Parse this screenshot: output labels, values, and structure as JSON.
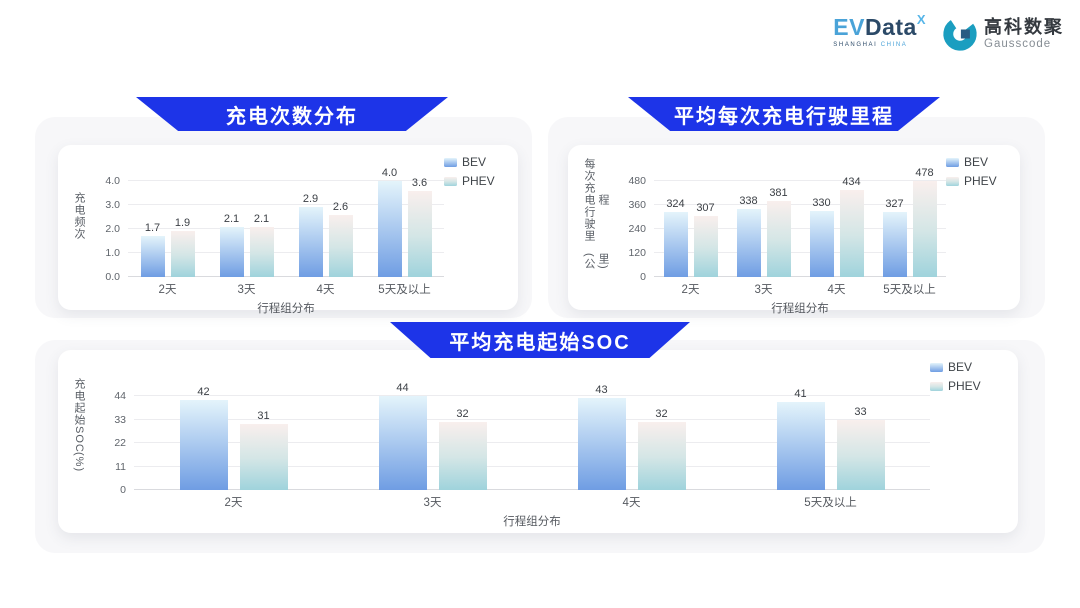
{
  "header": {
    "evdata": {
      "ev": "EV",
      "data": "Data",
      "sup": "X",
      "sub_left": "SHANGHAI",
      "sub_right": "CHINA"
    },
    "gausscode": {
      "name_cn": "高科数聚",
      "name_en": "Gausscode",
      "icon": "gausscode-g-mark"
    }
  },
  "colors": {
    "banner_blue": "#1d34e8",
    "bev_top": "#e4f4fb",
    "bev_bottom": "#6f9de3",
    "phev_top": "#f9efed",
    "phev_mid": "#d4e6e6",
    "phev_bottom": "#9fd3dc",
    "panel_gray": "#f7f7f9",
    "grid_line": "#ececef"
  },
  "chart_data": [
    {
      "type": "bar",
      "title": "充电次数分布",
      "xlabel": "行程组分布",
      "ylabel": "充电频次",
      "ylabel_unit": "",
      "ylim": [
        0,
        4
      ],
      "yticks": [
        0.0,
        1.0,
        2.0,
        3.0,
        4.0
      ],
      "ytick_labels": [
        "0.0",
        "1.0",
        "2.0",
        "3.0",
        "4.0"
      ],
      "grid": true,
      "legend_position": "right",
      "categories": [
        "2天",
        "3天",
        "4天",
        "5天及以上"
      ],
      "series": [
        {
          "name": "BEV",
          "values": [
            1.7,
            2.1,
            2.9,
            4.0
          ],
          "value_labels": [
            "1.7",
            "2.1",
            "2.9",
            "4.0"
          ]
        },
        {
          "name": "PHEV",
          "values": [
            1.9,
            2.1,
            2.6,
            3.6
          ],
          "value_labels": [
            "1.9",
            "2.1",
            "2.6",
            "3.6"
          ]
        }
      ]
    },
    {
      "type": "bar",
      "title": "平均每次充电行驶里程",
      "xlabel": "行程组分布",
      "ylabel": "每次充电行驶里程",
      "ylabel_unit": "(公里)",
      "ylim": [
        0,
        480
      ],
      "yticks": [
        0,
        120,
        240,
        360,
        480
      ],
      "ytick_labels": [
        "0",
        "120",
        "240",
        "360",
        "480"
      ],
      "grid": true,
      "legend_position": "right",
      "categories": [
        "2天",
        "3天",
        "4天",
        "5天及以上"
      ],
      "series": [
        {
          "name": "BEV",
          "values": [
            324,
            338,
            330,
            327
          ],
          "value_labels": [
            "324",
            "338",
            "330",
            "327"
          ]
        },
        {
          "name": "PHEV",
          "values": [
            307,
            381,
            434,
            478
          ],
          "value_labels": [
            "307",
            "381",
            "434",
            "478"
          ]
        }
      ]
    },
    {
      "type": "bar",
      "title": "平均充电起始SOC",
      "xlabel": "行程组分布",
      "ylabel": "充电起始SOC",
      "ylabel_unit": "(%)",
      "ylim": [
        0,
        44
      ],
      "yticks": [
        0,
        11,
        22,
        33,
        44
      ],
      "ytick_labels": [
        "0",
        "11",
        "22",
        "33",
        "44"
      ],
      "grid": true,
      "legend_position": "right",
      "categories": [
        "2天",
        "3天",
        "4天",
        "5天及以上"
      ],
      "series": [
        {
          "name": "BEV",
          "values": [
            42,
            44,
            43,
            41
          ],
          "value_labels": [
            "42",
            "44",
            "43",
            "41"
          ]
        },
        {
          "name": "PHEV",
          "values": [
            31,
            32,
            32,
            33
          ],
          "value_labels": [
            "31",
            "32",
            "32",
            "33"
          ]
        }
      ]
    }
  ]
}
